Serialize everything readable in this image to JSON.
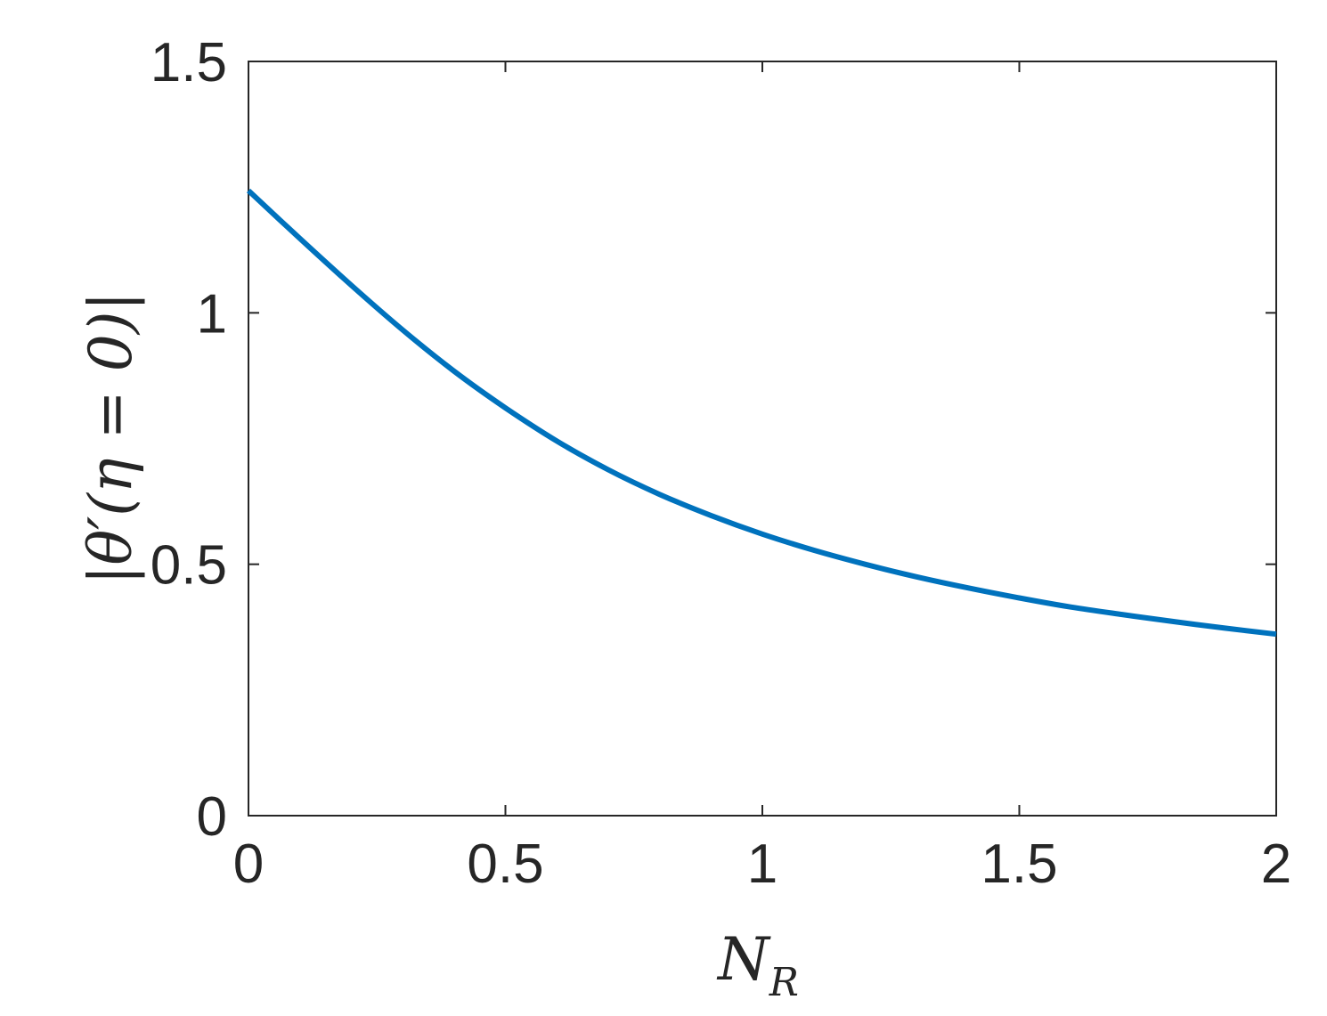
{
  "chart_data": {
    "type": "line",
    "xlabel": {
      "main": "N",
      "sub": "R"
    },
    "ylabel": "|θ′(η = 0)|",
    "xlim": [
      0,
      2
    ],
    "ylim": [
      0,
      1.5
    ],
    "xticks": [
      0,
      0.5,
      1,
      1.5,
      2
    ],
    "yticks": [
      0,
      0.5,
      1,
      1.5
    ],
    "xtick_labels": [
      "0",
      "0.5",
      "1",
      "1.5",
      "2"
    ],
    "ytick_labels": [
      "0",
      "0.5",
      "1",
      "1.5"
    ],
    "grid": false,
    "series": [
      {
        "color": "#0072BD",
        "x": [
          0,
          0.1,
          0.2,
          0.3,
          0.4,
          0.5,
          0.6,
          0.7,
          0.8,
          0.9,
          1.0,
          1.1,
          1.2,
          1.3,
          1.4,
          1.5,
          1.6,
          1.7,
          1.8,
          1.9,
          2.0
        ],
        "y": [
          1.243,
          1.148,
          1.055,
          0.966,
          0.884,
          0.811,
          0.745,
          0.688,
          0.639,
          0.597,
          0.56,
          0.528,
          0.5,
          0.475,
          0.453,
          0.433,
          0.415,
          0.4,
          0.386,
          0.373,
          0.361
        ]
      }
    ]
  }
}
